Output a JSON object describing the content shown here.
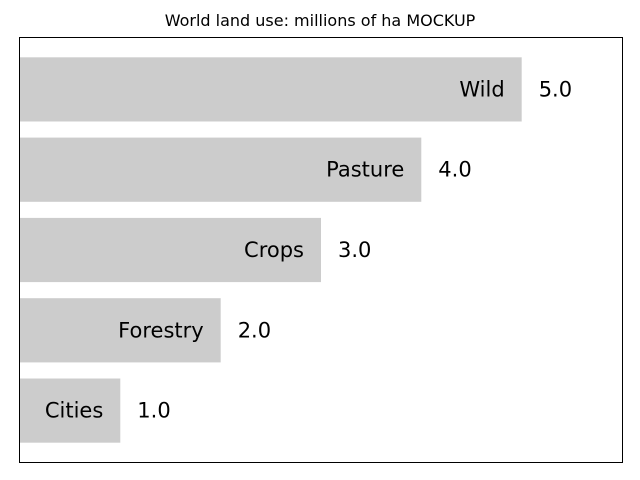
{
  "chart_data": {
    "type": "bar",
    "orientation": "horizontal",
    "title": "World land use: millions of ha MOCKUP",
    "categories": [
      "Wild",
      "Pasture",
      "Crops",
      "Forestry",
      "Cities"
    ],
    "values": [
      5.0,
      4.0,
      3.0,
      2.0,
      1.0
    ],
    "value_labels": [
      "5.0",
      "4.0",
      "3.0",
      "2.0",
      "1.0"
    ],
    "xlabel": "",
    "ylabel": "",
    "xlim": [
      0,
      6
    ],
    "grid": false,
    "axes_ticks_visible": false,
    "category_labels_inside_bars": true,
    "value_labels_outside_bars": true,
    "colors": {
      "bar": "#cccccc",
      "frame": "#000000",
      "text": "#000000",
      "background": "#ffffff"
    }
  }
}
